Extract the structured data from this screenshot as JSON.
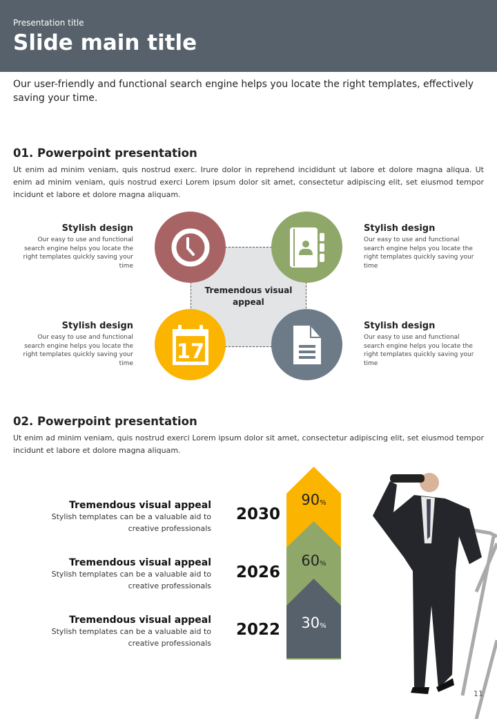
{
  "header": {
    "presentation_title": "Presentation title",
    "main_title": "Slide main title"
  },
  "intro": "Our user-friendly and functional search engine helps you locate the right templates, effectively saving your time.",
  "section1": {
    "title": "01. Powerpoint presentation",
    "text": "Ut enim ad minim veniam, quis nostrud exerc. Irure dolor in reprehend incididunt ut labore et dolore magna aliqua. Ut enim ad minim veniam, quis nostrud exerci  Lorem ipsum dolor sit amet, consectetur adipiscing elit, set eiusmod tempor incidunt et labore et dolore magna aliquam.",
    "center": "Tremendous visual appeal",
    "features": [
      {
        "title": "Stylish design",
        "text": "Our easy to use and functional search engine helps you locate the right templates quickly saving your time",
        "icon": "clock-icon",
        "color": "#a86464"
      },
      {
        "title": "Stylish design",
        "text": "Our easy to use and functional search engine helps you locate the right templates quickly saving your time",
        "icon": "address-book-icon",
        "color": "#8fa869"
      },
      {
        "title": "Stylish design",
        "text": "Our easy to use and functional search engine helps you locate the right templates quickly saving your time",
        "icon": "calendar-icon",
        "color": "#fbb400",
        "calendar_day": "17"
      },
      {
        "title": "Stylish design",
        "text": "Our easy to use and functional search engine helps you locate the right templates quickly saving your time",
        "icon": "document-icon",
        "color": "#6d7a87"
      }
    ]
  },
  "section2": {
    "title": "02. Powerpoint presentation",
    "text": "Ut enim ad minim veniam, quis nostrud exerci  Lorem ipsum dolor sit amet, consectetur adipiscing elit, set eiusmod tempor incidunt et labore et dolore magna aliquam.",
    "timeline": [
      {
        "title": "Tremendous visual appeal",
        "text": "Stylish templates can be a valuable aid to creative professionals",
        "year": "2030",
        "percent": "90",
        "unit": "%",
        "color": "#fbb400"
      },
      {
        "title": "Tremendous visual appeal",
        "text": "Stylish templates can be a valuable aid to creative professionals",
        "year": "2026",
        "percent": "60",
        "unit": "%",
        "color": "#8fa869"
      },
      {
        "title": "Tremendous visual appeal",
        "text": "Stylish templates can be a valuable aid to creative professionals",
        "year": "2022",
        "percent": "30",
        "unit": "%",
        "color": "#56616b"
      }
    ]
  },
  "page_number": "11"
}
